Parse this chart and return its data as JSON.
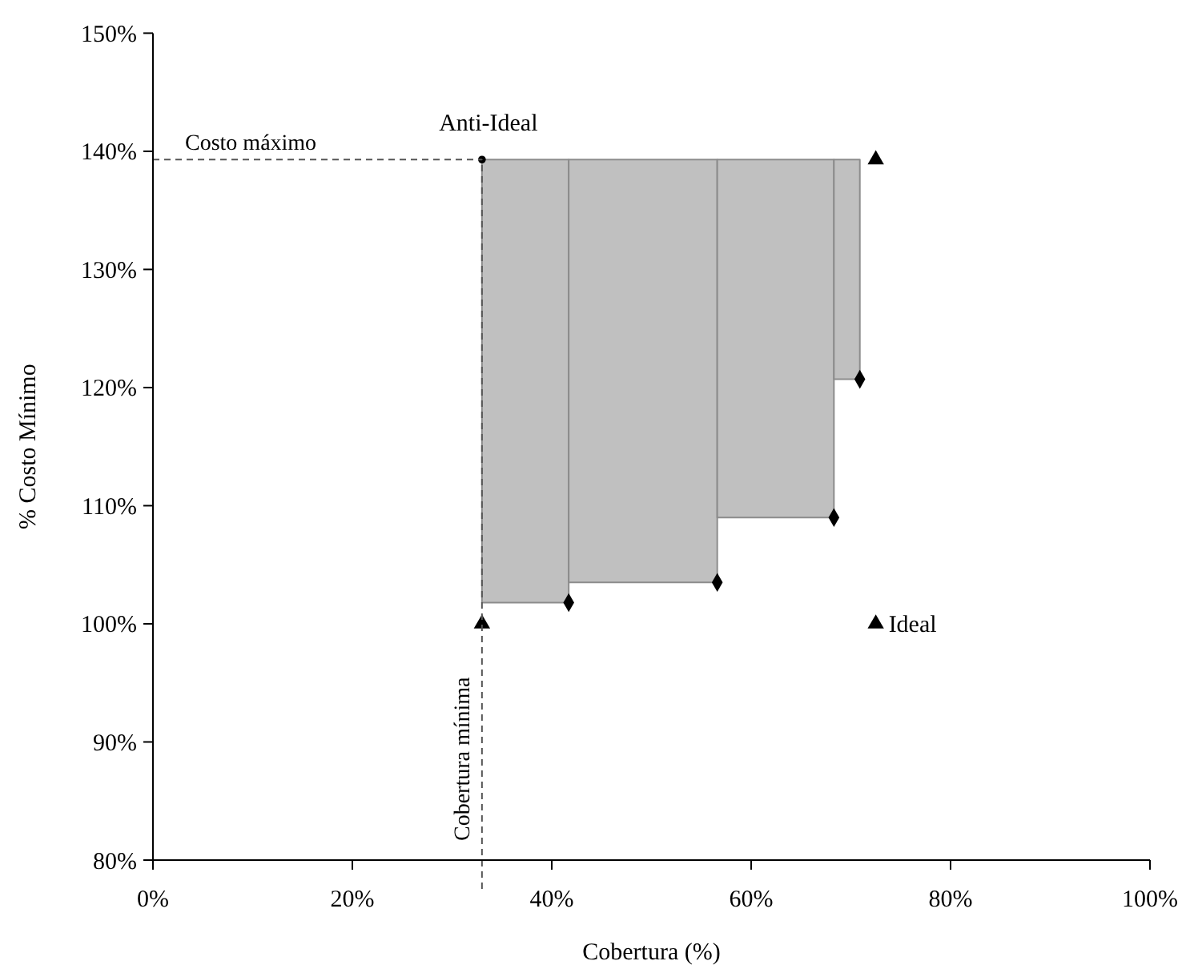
{
  "chart_data": {
    "type": "scatter",
    "xlabel": "Cobertura (%)",
    "ylabel": "% Costo Mínimo",
    "xlim": [
      0,
      100
    ],
    "xticks": [
      {
        "value": 0,
        "label": "0%"
      },
      {
        "value": 20,
        "label": "20%"
      },
      {
        "value": 40,
        "label": "40%"
      },
      {
        "value": 60,
        "label": "60%"
      },
      {
        "value": 80,
        "label": "80%"
      },
      {
        "value": 100,
        "label": "100%"
      }
    ],
    "ylim": [
      80,
      150
    ],
    "yticks": [
      {
        "value": 80,
        "label": "80%"
      },
      {
        "value": 90,
        "label": "90%"
      },
      {
        "value": 100,
        "label": "100%"
      },
      {
        "value": 110,
        "label": "110%"
      },
      {
        "value": 120,
        "label": "120%"
      },
      {
        "value": 130,
        "label": "130%"
      },
      {
        "value": 140,
        "label": "140%"
      },
      {
        "value": 150,
        "label": "150%"
      }
    ],
    "series": [
      {
        "type": "area",
        "color": "#c0c0c0",
        "x": [
          33,
          33,
          41.7,
          41.7
        ],
        "values": [
          101.8,
          139.3,
          139.3,
          101.8
        ]
      },
      {
        "type": "area",
        "color": "#c0c0c0",
        "x": [
          41.7,
          41.7,
          56.6,
          56.6
        ],
        "values": [
          103.5,
          139.3,
          139.3,
          103.5
        ]
      },
      {
        "type": "area",
        "color": "#c0c0c0",
        "x": [
          56.6,
          56.6,
          68.3,
          68.3
        ],
        "values": [
          109,
          139.3,
          139.3,
          109
        ]
      },
      {
        "type": "area",
        "color": "#c0c0c0",
        "x": [
          68.3,
          68.3,
          70.9,
          70.9
        ],
        "values": [
          120.7,
          139.3,
          139.3,
          120.7
        ]
      },
      {
        "color": "#000000",
        "marker": "diamond",
        "x": [
          41.7,
          56.6,
          68.3,
          70.9
        ],
        "values": [
          101.8,
          103.5,
          109,
          120.7
        ]
      },
      {
        "color": "#000000",
        "marker": "circle",
        "x": [
          33
        ],
        "values": [
          139.3
        ]
      },
      {
        "color": "#000000",
        "marker": "triangle",
        "x": [
          72.5,
          33,
          72.5
        ],
        "values": [
          139.3,
          100,
          100
        ]
      }
    ],
    "ref_lines": [
      {
        "axis": "y",
        "value": 139.3,
        "label": "Costo máximo",
        "line_style": "dashed"
      },
      {
        "axis": "x",
        "value": 33,
        "label": "Cobertura mínima",
        "line_style": "dashed"
      }
    ],
    "annotations": [
      {
        "text": "Anti-Ideal",
        "x": 33,
        "y": 139.3
      },
      {
        "text": "Ideal",
        "x": 72.5,
        "y": 100
      }
    ]
  }
}
